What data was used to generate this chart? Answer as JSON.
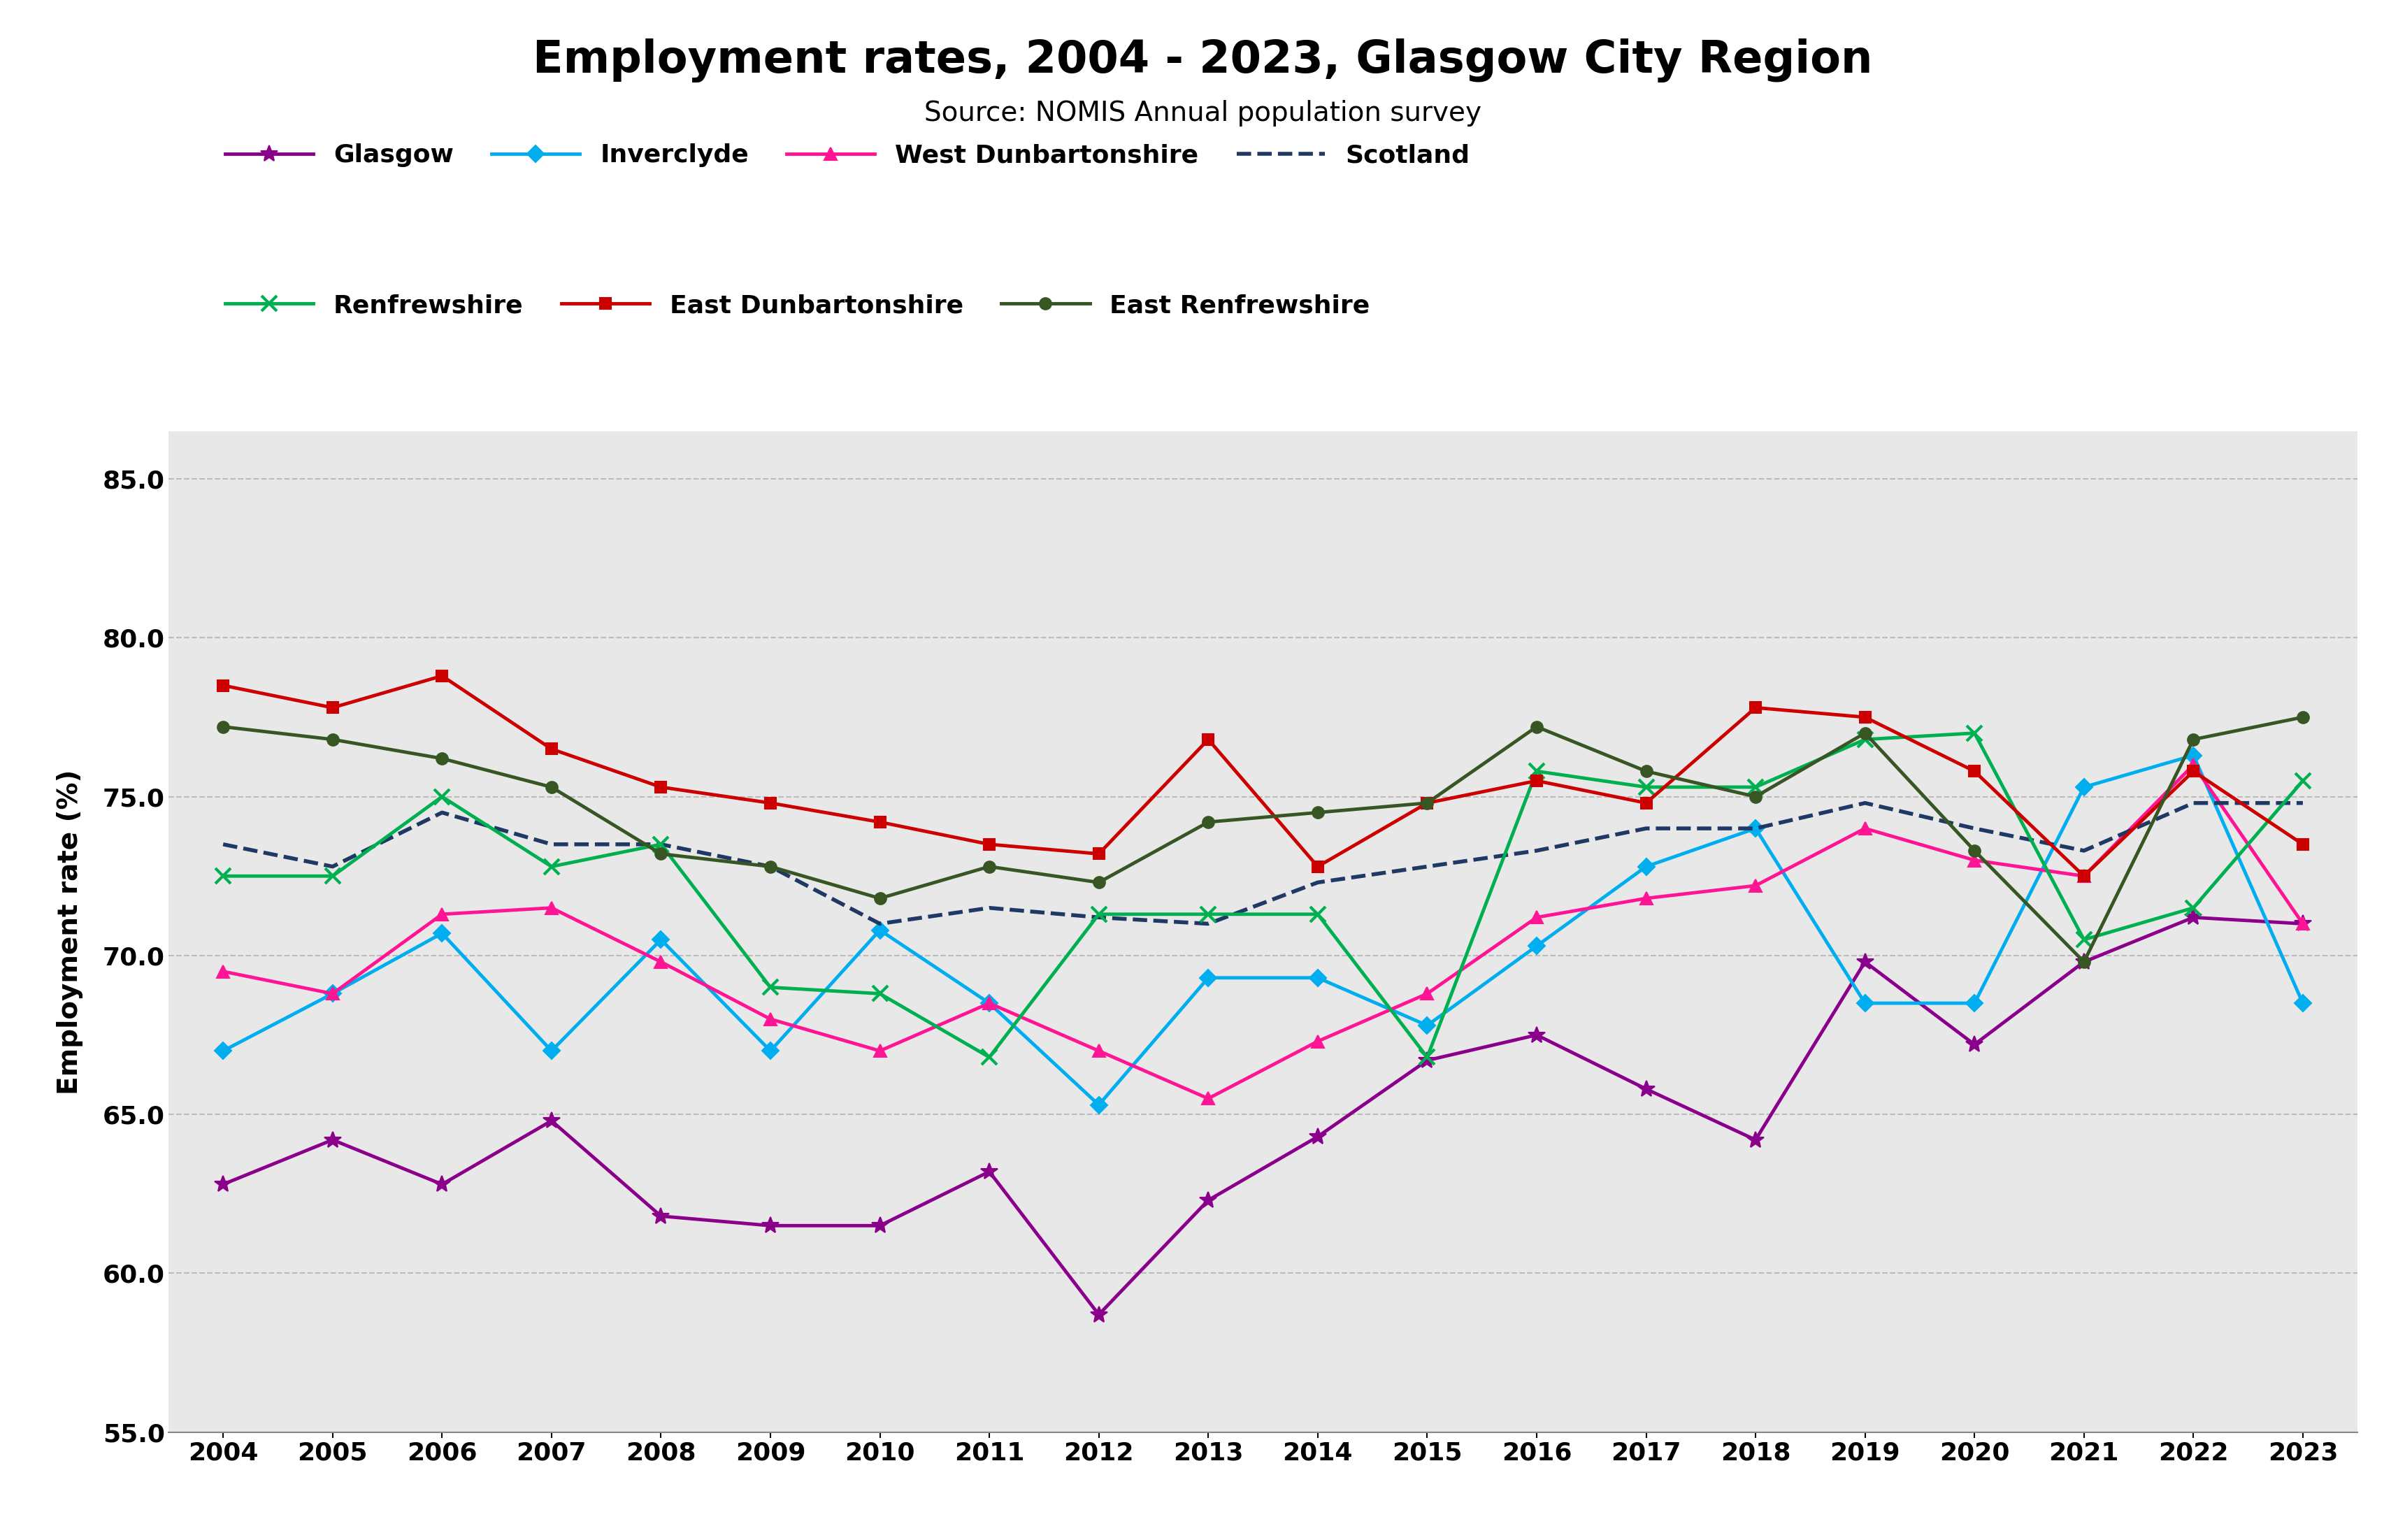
{
  "title": "Employment rates, 2004 - 2023, Glasgow City Region",
  "subtitle": "Source: NOMIS Annual population survey",
  "ylabel": "Employment rate (%)",
  "years": [
    2004,
    2005,
    2006,
    2007,
    2008,
    2009,
    2010,
    2011,
    2012,
    2013,
    2014,
    2015,
    2016,
    2017,
    2018,
    2019,
    2020,
    2021,
    2022,
    2023
  ],
  "ylim": [
    55.0,
    86.5
  ],
  "yticks": [
    55.0,
    60.0,
    65.0,
    70.0,
    75.0,
    80.0,
    85.0
  ],
  "series": [
    {
      "name": "Glasgow",
      "color": "#8B008B",
      "marker": "*",
      "linestyle": "-",
      "linewidth": 3.5,
      "markersize": 18,
      "data": [
        62.8,
        64.2,
        62.8,
        64.8,
        61.8,
        61.5,
        61.5,
        63.2,
        58.7,
        62.3,
        64.3,
        66.7,
        67.5,
        65.8,
        64.2,
        69.8,
        67.2,
        69.8,
        71.2,
        71.0
      ]
    },
    {
      "name": "Inverclyde",
      "color": "#00AEEF",
      "marker": "D",
      "linestyle": "-",
      "linewidth": 3.5,
      "markersize": 12,
      "data": [
        67.0,
        68.8,
        70.7,
        67.0,
        70.5,
        67.0,
        70.8,
        68.5,
        65.3,
        69.3,
        69.3,
        67.8,
        70.3,
        72.8,
        74.0,
        68.5,
        68.5,
        75.3,
        76.3,
        68.5
      ]
    },
    {
      "name": "West Dunbartonshire",
      "color": "#FF1493",
      "marker": "^",
      "linestyle": "-",
      "linewidth": 3.5,
      "markersize": 13,
      "data": [
        69.5,
        68.8,
        71.3,
        71.5,
        69.8,
        68.0,
        67.0,
        68.5,
        67.0,
        65.5,
        67.3,
        68.8,
        71.2,
        71.8,
        72.2,
        74.0,
        73.0,
        72.5,
        76.0,
        71.0
      ]
    },
    {
      "name": "Scotland",
      "color": "#1F3864",
      "marker": "None",
      "linestyle": "--",
      "linewidth": 4.0,
      "markersize": 0,
      "data": [
        73.5,
        72.8,
        74.5,
        73.5,
        73.5,
        72.8,
        71.0,
        71.5,
        71.2,
        71.0,
        72.3,
        72.8,
        73.3,
        74.0,
        74.0,
        74.8,
        74.0,
        73.3,
        74.8,
        74.8
      ]
    },
    {
      "name": "Renfrewshire",
      "color": "#00B050",
      "marker": "x",
      "linestyle": "-",
      "linewidth": 3.5,
      "markersize": 16,
      "markeredgewidth": 3,
      "data": [
        72.5,
        72.5,
        75.0,
        72.8,
        73.5,
        69.0,
        68.8,
        66.8,
        71.3,
        71.3,
        71.3,
        66.8,
        75.8,
        75.3,
        75.3,
        76.8,
        77.0,
        70.5,
        71.5,
        75.5
      ]
    },
    {
      "name": "East Dunbartonshire",
      "color": "#CC0000",
      "marker": "s",
      "linestyle": "-",
      "linewidth": 3.5,
      "markersize": 12,
      "data": [
        78.5,
        77.8,
        78.8,
        76.5,
        75.3,
        74.8,
        74.2,
        73.5,
        73.2,
        76.8,
        72.8,
        74.8,
        75.5,
        74.8,
        77.8,
        77.5,
        75.8,
        72.5,
        75.8,
        73.5
      ]
    },
    {
      "name": "East Renfrewshire",
      "color": "#375623",
      "marker": "o",
      "linestyle": "-",
      "linewidth": 3.5,
      "markersize": 12,
      "data": [
        77.2,
        76.8,
        76.2,
        75.3,
        73.2,
        72.8,
        71.8,
        72.8,
        72.3,
        74.2,
        74.5,
        74.8,
        77.2,
        75.8,
        75.0,
        77.0,
        73.3,
        69.8,
        76.8,
        77.5
      ]
    }
  ],
  "plot_bg_color": "#E8E8E8",
  "fig_bg_color": "#FFFFFF",
  "grid_color": "#BBBBBB",
  "title_fontsize": 46,
  "subtitle_fontsize": 28,
  "axis_label_fontsize": 28,
  "tick_fontsize": 26,
  "legend_fontsize": 26
}
